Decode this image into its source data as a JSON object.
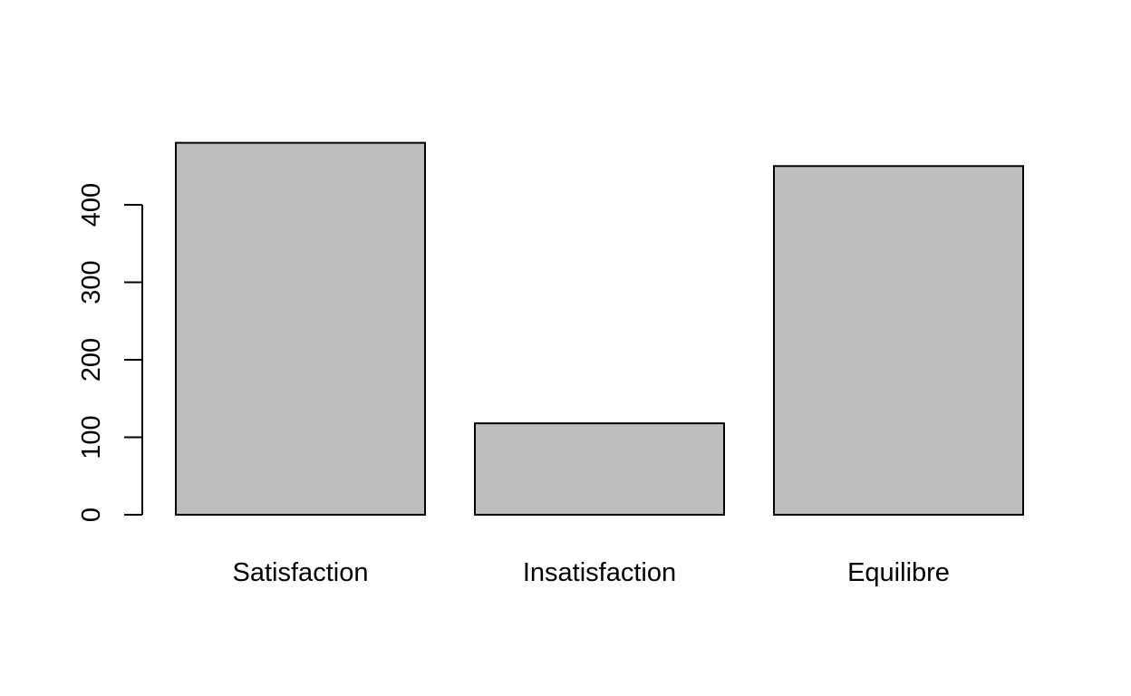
{
  "chart_data": {
    "type": "bar",
    "categories": [
      "Satisfaction",
      "Insatisfaction",
      "Equilibre"
    ],
    "values": [
      480,
      118,
      450
    ],
    "title": "",
    "xlabel": "",
    "ylabel": "",
    "ylim": [
      0,
      480
    ],
    "yticks": [
      0,
      100,
      200,
      300,
      400
    ],
    "ytick_labels": [
      "0",
      "100",
      "200",
      "300",
      "400"
    ],
    "grid": false,
    "legend": "none",
    "colors": {
      "bar_fill": "#bebebe",
      "bar_stroke": "#000000",
      "axis": "#000000",
      "text": "#000000",
      "background": "#ffffff"
    }
  }
}
